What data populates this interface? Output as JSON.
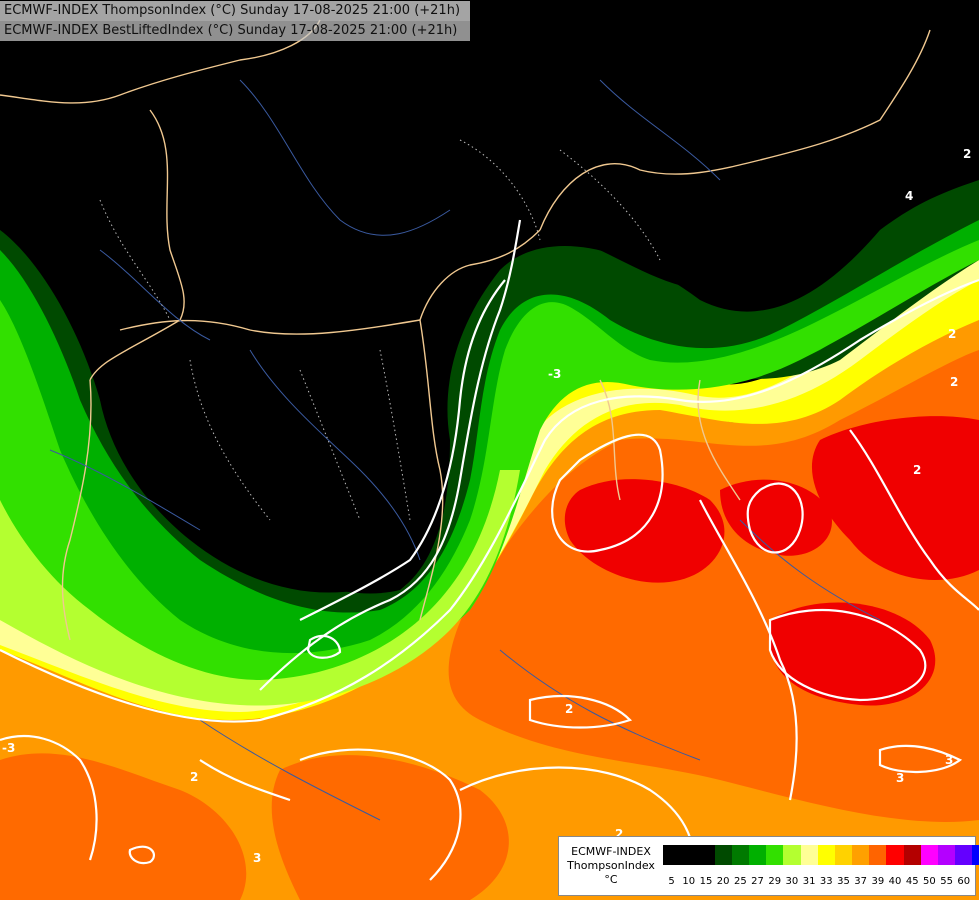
{
  "title": {
    "line1": "ECMWF-INDEX ThompsonIndex (°C) Sunday 17-08-2025 21:00 (+21h)",
    "line2": "ECMWF-INDEX BestLiftedIndex (°C) Sunday 17-08-2025 21:00 (+21h)"
  },
  "legend": {
    "source": "ECMWF-INDEX",
    "variable": "ThompsonIndex",
    "unit": "°C",
    "ticks": [
      "5",
      "10",
      "15",
      "20",
      "25",
      "27",
      "29",
      "30",
      "31",
      "33",
      "35",
      "37",
      "39",
      "40",
      "45",
      "50",
      "55",
      "60"
    ],
    "colors": [
      "#000000",
      "#000000",
      "#000000",
      "#004a00",
      "#007a00",
      "#00b000",
      "#32e000",
      "#b4ff30",
      "#ffff96",
      "#ffff00",
      "#ffd200",
      "#ffa000",
      "#ff6400",
      "#ff0000",
      "#b40000",
      "#ff00ff",
      "#b400ff",
      "#6400ff",
      "#0000ff"
    ]
  },
  "map": {
    "contour_labels": [
      "2",
      "2",
      "2",
      "2",
      "3",
      "3",
      "3",
      "2",
      "2",
      "4",
      "-3",
      "-3",
      "2"
    ]
  }
}
